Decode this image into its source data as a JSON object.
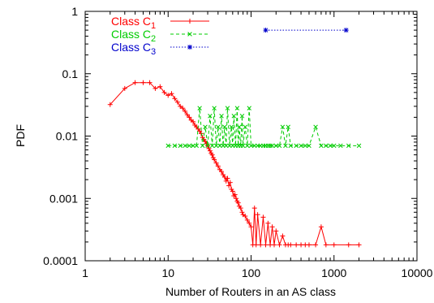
{
  "chart_data": {
    "type": "line",
    "xlabel": "Number of Routers in an AS class",
    "ylabel": "PDF",
    "x_scale": "log",
    "y_scale": "log",
    "xlim": [
      1,
      10000
    ],
    "ylim": [
      0.0001,
      1
    ],
    "x_ticks": [
      1,
      10,
      100,
      1000,
      10000
    ],
    "x_tick_labels": [
      "1",
      "10",
      "100",
      "1000",
      "10000"
    ],
    "y_ticks": [
      0.0001,
      0.001,
      0.01,
      0.1,
      1
    ],
    "y_tick_labels": [
      "0.0001",
      "0.001",
      "0.01",
      "0.1",
      "1"
    ],
    "grid": false,
    "legend_position": "top-left",
    "series": [
      {
        "name": "Class C",
        "subscript": "1",
        "color": "#ff0000",
        "line_style": "solid",
        "marker": "plus",
        "points": [
          [
            2,
            0.032
          ],
          [
            3,
            0.058
          ],
          [
            4,
            0.072
          ],
          [
            5,
            0.072
          ],
          [
            6,
            0.072
          ],
          [
            7,
            0.058
          ],
          [
            8,
            0.062
          ],
          [
            9,
            0.05
          ],
          [
            10,
            0.045
          ],
          [
            11,
            0.048
          ],
          [
            12,
            0.04
          ],
          [
            13,
            0.035
          ],
          [
            14,
            0.03
          ],
          [
            15,
            0.028
          ],
          [
            16,
            0.025
          ],
          [
            17,
            0.022
          ],
          [
            18,
            0.02
          ],
          [
            19,
            0.018
          ],
          [
            20,
            0.017
          ],
          [
            21,
            0.015
          ],
          [
            22,
            0.014
          ],
          [
            23,
            0.013
          ],
          [
            24,
            0.012
          ],
          [
            25,
            0.011
          ],
          [
            26,
            0.0095
          ],
          [
            27,
            0.0088
          ],
          [
            28,
            0.0082
          ],
          [
            29,
            0.0075
          ],
          [
            30,
            0.007
          ],
          [
            31,
            0.0063
          ],
          [
            32,
            0.0058
          ],
          [
            33,
            0.0053
          ],
          [
            34,
            0.005
          ],
          [
            35,
            0.0045
          ],
          [
            36,
            0.0042
          ],
          [
            38,
            0.0037
          ],
          [
            40,
            0.0033
          ],
          [
            42,
            0.0029
          ],
          [
            44,
            0.0027
          ],
          [
            46,
            0.0024
          ],
          [
            48,
            0.0022
          ],
          [
            50,
            0.0019
          ],
          [
            52,
            0.0021
          ],
          [
            54,
            0.0016
          ],
          [
            56,
            0.0018
          ],
          [
            58,
            0.0014
          ],
          [
            60,
            0.0013
          ],
          [
            62,
            0.0011
          ],
          [
            64,
            0.00115
          ],
          [
            66,
            0.001
          ],
          [
            68,
            0.0009
          ],
          [
            70,
            0.00085
          ],
          [
            72,
            0.00075
          ],
          [
            75,
            0.0007
          ],
          [
            78,
            0.0006
          ],
          [
            80,
            0.00055
          ],
          [
            85,
            0.00052
          ],
          [
            90,
            0.00045
          ],
          [
            95,
            0.0004
          ],
          [
            100,
            0.00035
          ],
          [
            105,
            0.00018
          ],
          [
            110,
            0.0007
          ],
          [
            115,
            0.00018
          ],
          [
            120,
            0.00055
          ],
          [
            130,
            0.00018
          ],
          [
            140,
            0.0005
          ],
          [
            150,
            0.00018
          ],
          [
            160,
            0.0004
          ],
          [
            170,
            0.00018
          ],
          [
            180,
            0.00035
          ],
          [
            190,
            0.00018
          ],
          [
            200,
            0.0003
          ],
          [
            220,
            0.00018
          ],
          [
            240,
            0.00025
          ],
          [
            260,
            0.00018
          ],
          [
            280,
            0.00018
          ],
          [
            300,
            0.00018
          ],
          [
            350,
            0.00018
          ],
          [
            400,
            0.00018
          ],
          [
            450,
            0.00018
          ],
          [
            500,
            0.00018
          ],
          [
            600,
            0.00018
          ],
          [
            700,
            0.00035
          ],
          [
            800,
            0.00018
          ],
          [
            1000,
            0.00018
          ],
          [
            1500,
            0.00018
          ],
          [
            2000,
            0.00018
          ]
        ]
      },
      {
        "name": "Class C",
        "subscript": "2",
        "color": "#00cc00",
        "line_style": "dashed",
        "marker": "x",
        "points": [
          [
            10,
            0.007
          ],
          [
            12,
            0.007
          ],
          [
            14,
            0.007
          ],
          [
            16,
            0.007
          ],
          [
            18,
            0.007
          ],
          [
            20,
            0.007
          ],
          [
            22,
            0.007
          ],
          [
            24,
            0.028
          ],
          [
            26,
            0.007
          ],
          [
            28,
            0.014
          ],
          [
            30,
            0.007
          ],
          [
            32,
            0.021
          ],
          [
            34,
            0.007
          ],
          [
            36,
            0.028
          ],
          [
            38,
            0.007
          ],
          [
            40,
            0.014
          ],
          [
            42,
            0.007
          ],
          [
            44,
            0.021
          ],
          [
            46,
            0.007
          ],
          [
            48,
            0.014
          ],
          [
            50,
            0.007
          ],
          [
            52,
            0.028
          ],
          [
            55,
            0.007
          ],
          [
            58,
            0.014
          ],
          [
            60,
            0.007
          ],
          [
            62,
            0.021
          ],
          [
            65,
            0.007
          ],
          [
            68,
            0.028
          ],
          [
            70,
            0.007
          ],
          [
            72,
            0.014
          ],
          [
            75,
            0.007
          ],
          [
            78,
            0.021
          ],
          [
            80,
            0.007
          ],
          [
            85,
            0.014
          ],
          [
            90,
            0.007
          ],
          [
            95,
            0.028
          ],
          [
            100,
            0.007
          ],
          [
            110,
            0.007
          ],
          [
            120,
            0.007
          ],
          [
            130,
            0.007
          ],
          [
            140,
            0.007
          ],
          [
            150,
            0.007
          ],
          [
            160,
            0.007
          ],
          [
            170,
            0.007
          ],
          [
            180,
            0.007
          ],
          [
            200,
            0.007
          ],
          [
            220,
            0.007
          ],
          [
            240,
            0.014
          ],
          [
            260,
            0.007
          ],
          [
            280,
            0.014
          ],
          [
            300,
            0.007
          ],
          [
            350,
            0.007
          ],
          [
            400,
            0.007
          ],
          [
            450,
            0.007
          ],
          [
            500,
            0.007
          ],
          [
            600,
            0.014
          ],
          [
            700,
            0.007
          ],
          [
            800,
            0.007
          ],
          [
            900,
            0.007
          ],
          [
            1000,
            0.007
          ],
          [
            1200,
            0.007
          ],
          [
            1500,
            0.007
          ],
          [
            2000,
            0.007
          ]
        ]
      },
      {
        "name": "Class C",
        "subscript": "3",
        "color": "#0000cc",
        "line_style": "dotted",
        "marker": "star",
        "points": [
          [
            150,
            0.5
          ],
          [
            1400,
            0.5
          ]
        ]
      }
    ]
  }
}
